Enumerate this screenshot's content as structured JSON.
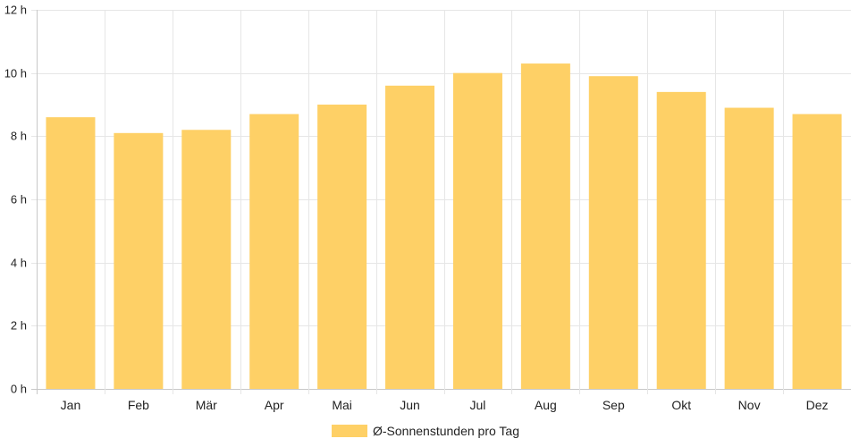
{
  "chart_data": {
    "type": "bar",
    "categories": [
      "Jan",
      "Feb",
      "Mär",
      "Apr",
      "Mai",
      "Jun",
      "Jul",
      "Aug",
      "Sep",
      "Okt",
      "Nov",
      "Dez"
    ],
    "series": [
      {
        "name": "Ø-Sonnenstunden pro Tag",
        "values": [
          8.6,
          8.1,
          8.2,
          8.7,
          9.0,
          9.6,
          10.0,
          10.3,
          9.9,
          9.4,
          8.9,
          8.7
        ]
      }
    ],
    "y_ticks": [
      "0 h",
      "2 h",
      "4 h",
      "6 h",
      "8 h",
      "10 h",
      "12 h"
    ],
    "ylim": [
      0,
      12
    ],
    "grid": true,
    "legend_position": "bottom",
    "bar_color": "#fed066"
  }
}
